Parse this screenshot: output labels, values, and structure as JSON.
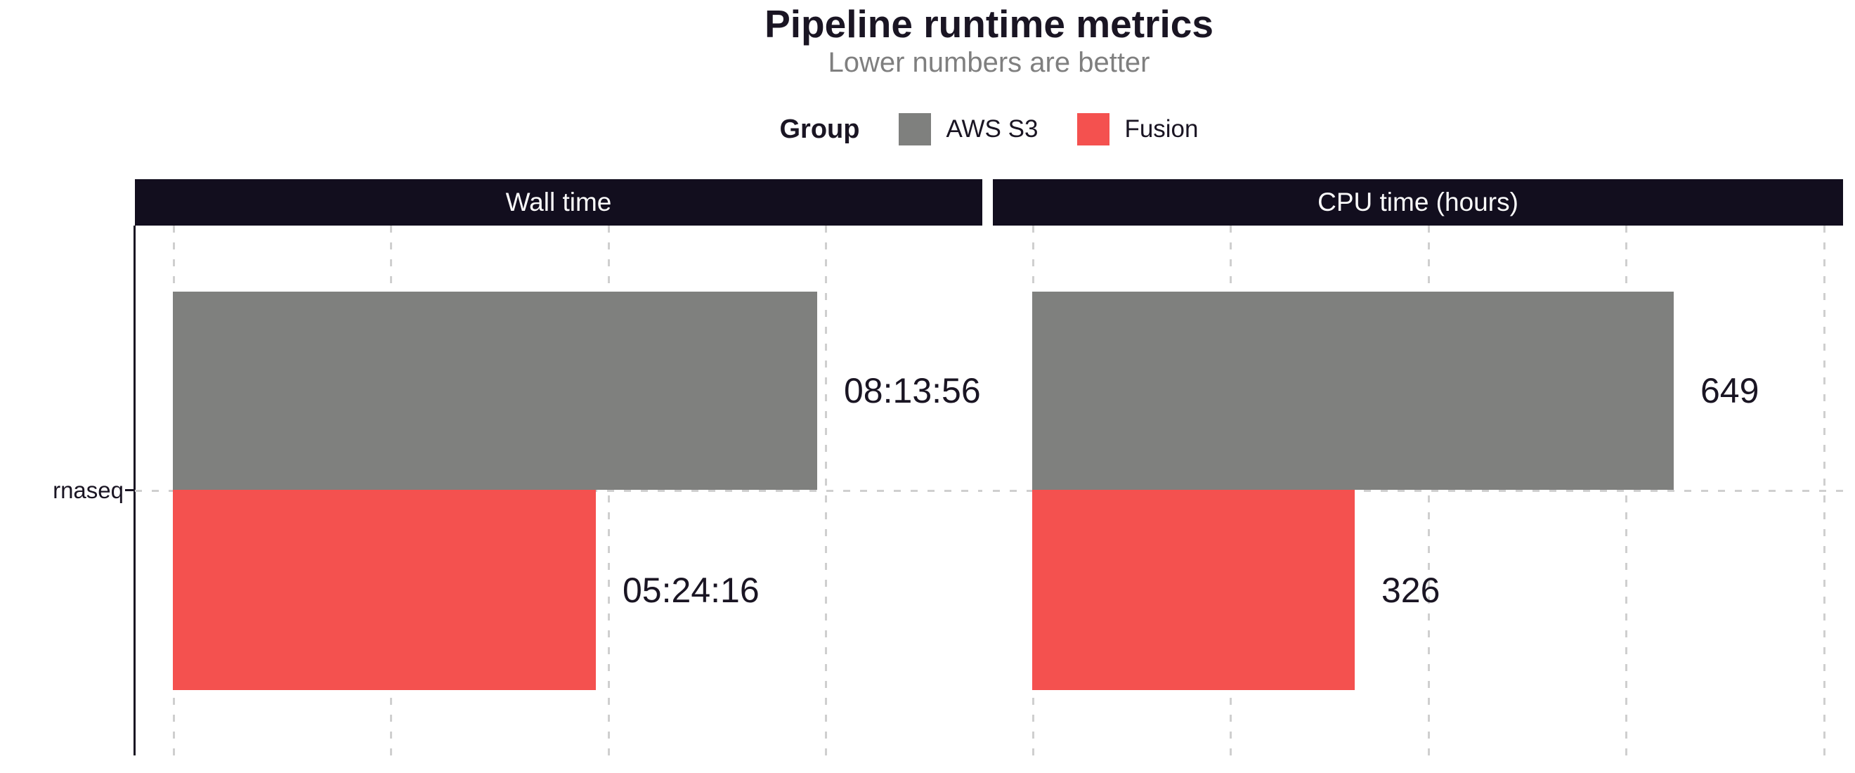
{
  "title": "Pipeline runtime metrics",
  "subtitle": "Lower numbers are better",
  "legend": {
    "title": "Group",
    "items": [
      {
        "label": "AWS S3",
        "color": "#7f807e"
      },
      {
        "label": "Fusion",
        "color": "#f4514f"
      }
    ]
  },
  "y_axis": {
    "category": "rnaseq"
  },
  "colors": {
    "aws_s3": "#7f807e",
    "fusion": "#f4514f",
    "strip_background": "#120e1e",
    "strip_text": "#fbfbfb",
    "title_text": "#1a1523",
    "subtitle_text": "#7f7f7f",
    "gridline": "#cfcfcf",
    "axis_line": "#1a1523",
    "background": "#ffffff"
  },
  "chart_data": {
    "type": "bar",
    "orientation": "horizontal",
    "title": "Pipeline runtime metrics",
    "subtitle": "Lower numbers are better",
    "legend_title": "Group",
    "legend_position": "top",
    "grid": "dashed",
    "categories": [
      "rnaseq"
    ],
    "groups": [
      "AWS S3",
      "Fusion"
    ],
    "facets": [
      {
        "strip_label": "Wall time",
        "xmax": 37250,
        "gridline_values": [
          0,
          10000,
          20000,
          30000
        ],
        "bars": [
          {
            "group": "AWS S3",
            "category": "rnaseq",
            "value": 29636,
            "label": "08:13:56"
          },
          {
            "group": "Fusion",
            "category": "rnaseq",
            "value": 19456,
            "label": "05:24:16"
          }
        ]
      },
      {
        "strip_label": "CPU time (hours)",
        "xmax": 820,
        "gridline_values": [
          0,
          200,
          400,
          600,
          800
        ],
        "bars": [
          {
            "group": "AWS S3",
            "category": "rnaseq",
            "value": 649,
            "label": "649"
          },
          {
            "group": "Fusion",
            "category": "rnaseq",
            "value": 326,
            "label": "326"
          }
        ]
      }
    ]
  }
}
